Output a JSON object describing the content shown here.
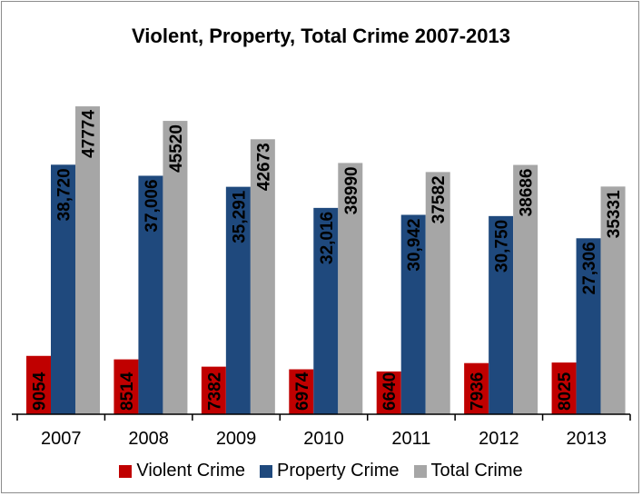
{
  "chart_data": {
    "type": "bar",
    "title": "Violent, Property, Total Crime 2007-2013",
    "xlabel": "",
    "ylabel": "",
    "categories": [
      "2007",
      "2008",
      "2009",
      "2010",
      "2011",
      "2012",
      "2013"
    ],
    "ylim": [
      0,
      53000
    ],
    "grid": false,
    "legend_position": "bottom",
    "series": [
      {
        "name": "Violent Crime",
        "color": "#c00000",
        "values": [
          9054,
          8514,
          7382,
          6974,
          6640,
          7936,
          8025
        ],
        "labels": [
          "9054",
          "8514",
          "7382",
          "6974",
          "6640",
          "7936",
          "8025"
        ]
      },
      {
        "name": "Property Crime",
        "color": "#1f497d",
        "values": [
          38720,
          37006,
          35291,
          32016,
          30942,
          30750,
          27306
        ],
        "labels": [
          "38,720",
          "37,006",
          "35,291",
          "32,016",
          "30,942",
          "30,750",
          "27,306"
        ]
      },
      {
        "name": "Total Crime",
        "color": "#a6a6a6",
        "values": [
          47774,
          45520,
          42673,
          38990,
          37582,
          38686,
          35331
        ],
        "labels": [
          "47774",
          "45520",
          "42673",
          "38990",
          "37582",
          "38686",
          "35331"
        ]
      }
    ]
  }
}
